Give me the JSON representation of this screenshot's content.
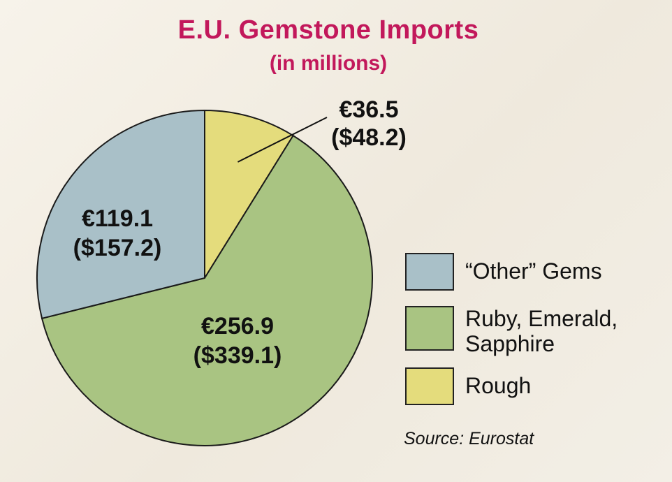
{
  "chart_data": {
    "type": "pie",
    "title": "E.U. Gemstone Imports",
    "subtitle": "(in millions)",
    "start_angle_deg": 0,
    "direction": "clockwise",
    "slices": [
      {
        "category": "Rough",
        "value": 36.5,
        "label_line1": "€36.5",
        "label_line2": "($48.2)",
        "color": "#e4dc7c"
      },
      {
        "category": "Ruby, Emerald, Sapphire",
        "value": 256.9,
        "label_line1": "€256.9",
        "label_line2": "($339.1)",
        "color": "#a9c482"
      },
      {
        "category": "\"Other\" Gems",
        "value": 119.1,
        "label_line1": "€119.1",
        "label_line2": "($157.2)",
        "color": "#a9c0c8"
      }
    ]
  },
  "legend": {
    "items": [
      {
        "lines": [
          "“Other” Gems"
        ],
        "color": "#a9c0c8"
      },
      {
        "lines": [
          "Ruby, Emerald,",
          "Sapphire"
        ],
        "color": "#a9c482"
      },
      {
        "lines": [
          "Rough"
        ],
        "color": "#e4dc7c"
      }
    ]
  },
  "source": "Source: Eurostat"
}
